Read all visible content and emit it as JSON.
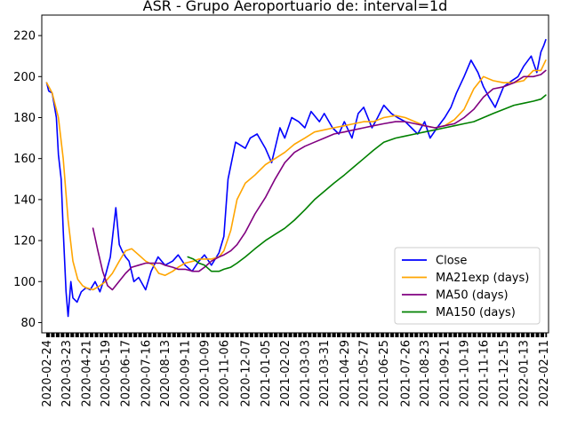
{
  "chart_data": {
    "type": "line",
    "title": "ASR - Grupo Aeroportuario de: interval=1d",
    "xlabel": "",
    "ylabel": "",
    "ylim": [
      75,
      230
    ],
    "yticks": [
      80,
      100,
      120,
      140,
      160,
      180,
      200,
      220
    ],
    "x_range": [
      "2020-02-17",
      "2022-02-18"
    ],
    "x_tick_labels": [
      "2020-02-24",
      "2020-03-23",
      "2020-04-21",
      "2020-05-19",
      "2020-06-17",
      "2020-07-16",
      "2020-08-13",
      "2020-09-11",
      "2020-10-09",
      "2020-11-06",
      "2020-12-07",
      "2021-01-05",
      "2021-02-02",
      "2021-03-03",
      "2021-03-31",
      "2021-04-29",
      "2021-05-27",
      "2021-06-25",
      "2021-07-26",
      "2021-08-23",
      "2021-09-21",
      "2021-10-19",
      "2021-11-16",
      "2021-12-15",
      "2022-01-13",
      "2022-02-11"
    ],
    "grid": false,
    "legend_position": "lower right",
    "series": [
      {
        "name": "Close",
        "color": "#0000ff",
        "x": [
          "2020-02-24",
          "2020-02-27",
          "2020-03-03",
          "2020-03-09",
          "2020-03-12",
          "2020-03-16",
          "2020-03-19",
          "2020-03-23",
          "2020-03-26",
          "2020-03-30",
          "2020-04-02",
          "2020-04-08",
          "2020-04-14",
          "2020-04-21",
          "2020-04-27",
          "2020-05-04",
          "2020-05-11",
          "2020-05-19",
          "2020-05-26",
          "2020-06-03",
          "2020-06-08",
          "2020-06-12",
          "2020-06-17",
          "2020-06-22",
          "2020-06-29",
          "2020-07-06",
          "2020-07-16",
          "2020-07-24",
          "2020-08-03",
          "2020-08-13",
          "2020-08-24",
          "2020-09-01",
          "2020-09-11",
          "2020-09-21",
          "2020-10-01",
          "2020-10-09",
          "2020-10-19",
          "2020-10-30",
          "2020-11-06",
          "2020-11-12",
          "2020-11-23",
          "2020-12-07",
          "2020-12-14",
          "2020-12-24",
          "2021-01-05",
          "2021-01-14",
          "2021-01-26",
          "2021-02-02",
          "2021-02-12",
          "2021-02-22",
          "2021-03-03",
          "2021-03-12",
          "2021-03-24",
          "2021-03-31",
          "2021-04-12",
          "2021-04-21",
          "2021-04-29",
          "2021-05-10",
          "2021-05-19",
          "2021-05-27",
          "2021-06-08",
          "2021-06-16",
          "2021-06-25",
          "2021-07-06",
          "2021-07-15",
          "2021-07-26",
          "2021-08-04",
          "2021-08-13",
          "2021-08-23",
          "2021-08-31",
          "2021-09-10",
          "2021-09-21",
          "2021-09-30",
          "2021-10-08",
          "2021-10-19",
          "2021-10-29",
          "2021-11-08",
          "2021-11-16",
          "2021-11-24",
          "2021-12-03",
          "2021-12-15",
          "2021-12-27",
          "2022-01-05",
          "2022-01-13",
          "2022-01-24",
          "2022-02-01",
          "2022-02-07",
          "2022-02-11",
          "2022-02-14"
        ],
        "values": [
          197,
          193,
          192,
          180,
          162,
          150,
          125,
          95,
          83,
          100,
          92,
          90,
          95,
          97,
          96,
          100,
          95,
          103,
          112,
          136,
          118,
          115,
          112,
          110,
          100,
          102,
          96,
          105,
          112,
          108,
          110,
          113,
          108,
          105,
          110,
          113,
          108,
          114,
          122,
          150,
          168,
          165,
          170,
          172,
          165,
          158,
          175,
          170,
          180,
          178,
          175,
          183,
          178,
          182,
          175,
          172,
          178,
          170,
          182,
          185,
          175,
          180,
          186,
          182,
          180,
          178,
          175,
          172,
          178,
          170,
          175,
          180,
          185,
          192,
          200,
          208,
          202,
          195,
          190,
          185,
          195,
          198,
          200,
          205,
          210,
          202,
          212,
          215,
          218
        ]
      },
      {
        "name": "MA21exp (days)",
        "color": "#ffa500",
        "x": [
          "2020-02-24",
          "2020-03-03",
          "2020-03-12",
          "2020-03-19",
          "2020-03-26",
          "2020-04-02",
          "2020-04-09",
          "2020-04-16",
          "2020-04-21",
          "2020-05-01",
          "2020-05-11",
          "2020-05-19",
          "2020-05-29",
          "2020-06-08",
          "2020-06-17",
          "2020-06-26",
          "2020-07-06",
          "2020-07-16",
          "2020-07-27",
          "2020-08-04",
          "2020-08-13",
          "2020-08-24",
          "2020-09-01",
          "2020-09-11",
          "2020-09-23",
          "2020-10-01",
          "2020-10-09",
          "2020-10-19",
          "2020-10-30",
          "2020-11-06",
          "2020-11-16",
          "2020-11-25",
          "2020-12-07",
          "2020-12-21",
          "2021-01-05",
          "2021-01-19",
          "2021-02-02",
          "2021-02-16",
          "2021-03-03",
          "2021-03-17",
          "2021-03-31",
          "2021-04-14",
          "2021-04-29",
          "2021-05-13",
          "2021-05-27",
          "2021-06-10",
          "2021-06-25",
          "2021-07-12",
          "2021-07-26",
          "2021-08-09",
          "2021-08-23",
          "2021-09-07",
          "2021-09-21",
          "2021-10-05",
          "2021-10-19",
          "2021-11-02",
          "2021-11-16",
          "2021-11-30",
          "2021-12-15",
          "2021-12-30",
          "2022-01-13",
          "2022-01-27",
          "2022-02-07",
          "2022-02-14"
        ],
        "values": [
          197,
          192,
          180,
          160,
          130,
          110,
          101,
          98,
          97,
          96,
          98,
          100,
          104,
          110,
          115,
          116,
          113,
          110,
          108,
          104,
          103,
          105,
          107,
          109,
          110,
          111,
          111,
          111,
          112,
          115,
          125,
          140,
          148,
          152,
          157,
          160,
          163,
          167,
          170,
          173,
          174,
          175,
          176,
          177,
          178,
          178,
          180,
          181,
          180,
          178,
          176,
          175,
          176,
          179,
          184,
          194,
          200,
          198,
          197,
          197,
          198,
          203,
          203,
          208
        ]
      },
      {
        "name": "MA50 (days)",
        "color": "#800080",
        "x": [
          "2020-05-01",
          "2020-05-08",
          "2020-05-15",
          "2020-05-22",
          "2020-05-29",
          "2020-06-05",
          "2020-06-17",
          "2020-06-26",
          "2020-07-06",
          "2020-07-16",
          "2020-07-27",
          "2020-08-06",
          "2020-08-13",
          "2020-08-24",
          "2020-09-01",
          "2020-09-11",
          "2020-09-23",
          "2020-10-01",
          "2020-10-09",
          "2020-10-19",
          "2020-10-30",
          "2020-11-06",
          "2020-11-16",
          "2020-11-25",
          "2020-12-07",
          "2020-12-21",
          "2021-01-05",
          "2021-01-19",
          "2021-02-02",
          "2021-02-16",
          "2021-03-03",
          "2021-03-17",
          "2021-03-31",
          "2021-04-14",
          "2021-04-29",
          "2021-05-13",
          "2021-05-27",
          "2021-06-10",
          "2021-06-25",
          "2021-07-12",
          "2021-07-26",
          "2021-08-09",
          "2021-08-23",
          "2021-09-07",
          "2021-09-21",
          "2021-10-05",
          "2021-10-19",
          "2021-11-02",
          "2021-11-16",
          "2021-11-30",
          "2021-12-15",
          "2021-12-30",
          "2022-01-13",
          "2022-01-27",
          "2022-02-07",
          "2022-02-14"
        ],
        "values": [
          126,
          115,
          105,
          98,
          96,
          99,
          104,
          107,
          108,
          109,
          109,
          109,
          108,
          107,
          106,
          106,
          105,
          105,
          107,
          110,
          112,
          113,
          115,
          118,
          124,
          133,
          141,
          150,
          158,
          163,
          166,
          168,
          170,
          172,
          173,
          174,
          175,
          176,
          177,
          178,
          178,
          177,
          176,
          175,
          176,
          177,
          180,
          184,
          190,
          194,
          195,
          197,
          200,
          200,
          201,
          203
        ]
      },
      {
        "name": "MA150 (days)",
        "color": "#008000",
        "x": [
          "2020-09-15",
          "2020-09-23",
          "2020-10-01",
          "2020-10-09",
          "2020-10-19",
          "2020-10-30",
          "2020-11-06",
          "2020-11-16",
          "2020-11-25",
          "2020-12-07",
          "2020-12-21",
          "2021-01-05",
          "2021-01-19",
          "2021-02-02",
          "2021-02-16",
          "2021-03-03",
          "2021-03-17",
          "2021-03-31",
          "2021-04-14",
          "2021-04-29",
          "2021-05-13",
          "2021-05-27",
          "2021-06-10",
          "2021-06-25",
          "2021-07-12",
          "2021-07-26",
          "2021-08-09",
          "2021-08-23",
          "2021-09-07",
          "2021-09-21",
          "2021-10-05",
          "2021-10-19",
          "2021-11-02",
          "2021-11-16",
          "2021-11-30",
          "2021-12-15",
          "2021-12-30",
          "2022-01-13",
          "2022-01-27",
          "2022-02-07",
          "2022-02-14"
        ],
        "values": [
          112,
          111,
          109,
          108,
          105,
          105,
          106,
          107,
          109,
          112,
          116,
          120,
          123,
          126,
          130,
          135,
          140,
          144,
          148,
          152,
          156,
          160,
          164,
          168,
          170,
          171,
          172,
          173,
          174,
          175,
          176,
          177,
          178,
          180,
          182,
          184,
          186,
          187,
          188,
          189,
          191
        ]
      }
    ]
  }
}
